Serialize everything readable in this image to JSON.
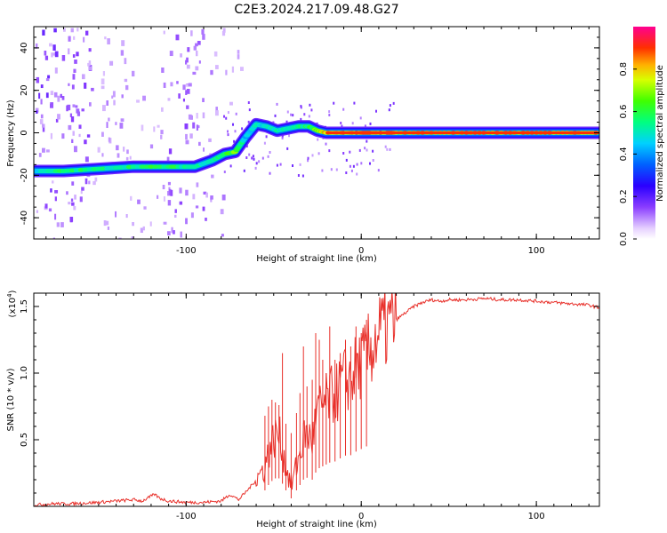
{
  "figure_title": "C2E3.2024.217.09.48.G27",
  "colorbar": {
    "label": "Normalized spectral amplitude",
    "ticks": [
      "0.0",
      "0.2",
      "0.4",
      "0.6",
      "0.8"
    ]
  },
  "colors": {
    "snr_line": "#e8302a",
    "axis": "#000000",
    "background": "#ffffff"
  },
  "chart_data": [
    {
      "type": "heatmap",
      "xlabel": "Height of straight line (km)",
      "ylabel": "Frequency (Hz)",
      "xlim": [
        -187,
        136
      ],
      "ylim": [
        -50,
        50
      ],
      "x_ticks": [
        "-100",
        "0",
        "100"
      ],
      "y_ticks": [
        "40",
        "20",
        "0",
        "-20",
        "-40"
      ],
      "colorbar_range": [
        0,
        1
      ],
      "ridge": {
        "x": [
          -187,
          -170,
          -150,
          -130,
          -110,
          -95,
          -85,
          -78,
          -72,
          -66,
          -60,
          -54,
          -48,
          -42,
          -36,
          -30,
          -25,
          -20,
          -10,
          0,
          10,
          20,
          40,
          60,
          80,
          100,
          120,
          136
        ],
        "frequency": [
          -18,
          -18,
          -17,
          -16,
          -16,
          -16,
          -13,
          -10,
          -9,
          -2,
          4,
          3,
          1,
          2,
          3,
          3,
          1,
          0,
          0,
          0,
          0,
          0,
          0,
          0,
          0,
          0,
          0,
          0
        ],
        "amplitude": [
          0.45,
          0.6,
          0.55,
          0.6,
          0.6,
          0.55,
          0.55,
          0.6,
          0.7,
          0.45,
          0.5,
          0.5,
          0.55,
          0.5,
          0.55,
          0.6,
          0.7,
          0.85,
          0.9,
          0.9,
          0.9,
          0.9,
          0.9,
          0.9,
          0.9,
          0.9,
          0.9,
          0.9
        ]
      }
    },
    {
      "type": "line",
      "xlabel": "Height of straight line (km)",
      "ylabel": "SNR (10 * v/v)",
      "scale_label": "(x10",
      "scale_exponent": "4",
      "scale_close": ")",
      "xlim": [
        -187,
        136
      ],
      "ylim": [
        0,
        1.6
      ],
      "x_ticks": [
        "-100",
        "0",
        "100"
      ],
      "y_ticks": [
        "0.5",
        "1.0",
        "1.5"
      ],
      "series": [
        {
          "x": [
            -187,
            -175,
            -165,
            -150,
            -140,
            -130,
            -125,
            -118,
            -115,
            -110,
            -100,
            -90,
            -80,
            -75,
            -70,
            -65,
            -60,
            -55,
            -52,
            -50,
            -48,
            -46,
            -44,
            -40,
            -36,
            -32,
            -28,
            -25,
            -22,
            -18,
            -14,
            -10,
            -6,
            -2,
            2,
            6,
            10,
            15,
            20,
            25,
            30,
            35,
            40,
            45,
            50,
            60,
            70,
            80,
            90,
            100,
            110,
            120,
            130,
            136
          ],
          "y": [
            0.01,
            0.02,
            0.02,
            0.03,
            0.04,
            0.05,
            0.04,
            0.09,
            0.06,
            0.04,
            0.03,
            0.03,
            0.04,
            0.09,
            0.05,
            0.12,
            0.2,
            0.3,
            0.45,
            0.5,
            0.55,
            0.5,
            0.35,
            0.15,
            0.35,
            0.55,
            0.5,
            0.7,
            0.75,
            0.82,
            0.85,
            0.95,
            0.96,
            1.05,
            1.1,
            1.2,
            1.3,
            1.35,
            1.4,
            1.45,
            1.5,
            1.53,
            1.55,
            1.54,
            1.55,
            1.55,
            1.56,
            1.55,
            1.55,
            1.54,
            1.53,
            1.52,
            1.51,
            1.49
          ],
          "spike_x": [
            -55,
            -53,
            -51,
            -49,
            -47,
            -45,
            -43,
            -40,
            -37,
            -35,
            -33,
            -31,
            -28,
            -26,
            -24,
            -22,
            -20,
            -18,
            -15,
            -12,
            -9,
            -6,
            -3,
            0,
            3
          ],
          "spike_y": [
            0.68,
            0.75,
            0.8,
            0.78,
            0.76,
            1.15,
            0.62,
            0.55,
            0.7,
            0.85,
            1.2,
            0.9,
            0.95,
            1.3,
            1.25,
            1.1,
            1.0,
            1.35,
            1.1,
            1.15,
            1.25,
            1.2,
            1.35,
            1.3,
            1.4
          ]
        }
      ]
    }
  ]
}
